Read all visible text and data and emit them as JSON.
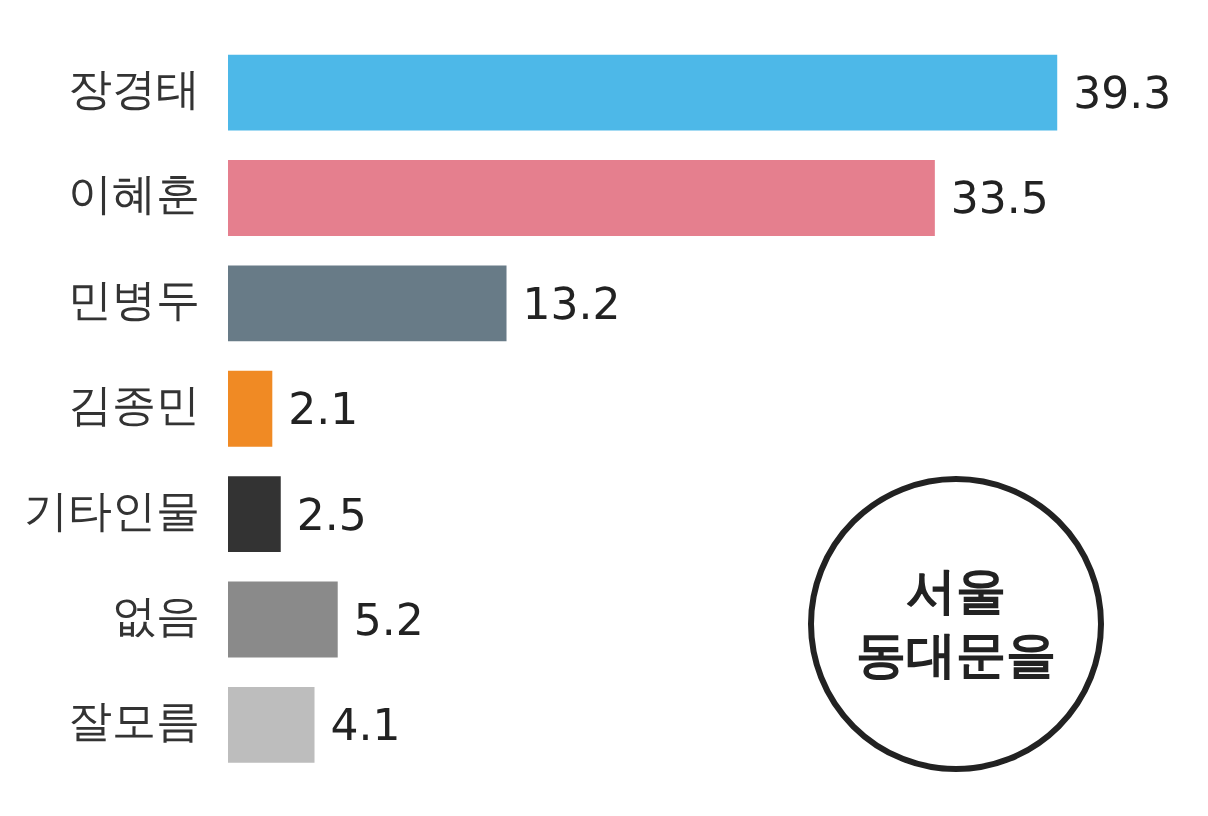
{
  "chart_data": {
    "type": "bar",
    "orientation": "horizontal",
    "categories": [
      "장경태",
      "이혜훈",
      "민병두",
      "김종민",
      "기타인물",
      "없음",
      "잘모름"
    ],
    "values": [
      39.3,
      33.5,
      13.2,
      2.1,
      2.5,
      5.2,
      4.1
    ],
    "colors": [
      "#4db8e8",
      "#e57f8e",
      "#687b87",
      "#f08a24",
      "#333333",
      "#8a8a8a",
      "#bdbdbd"
    ],
    "data_labels": true,
    "legend": false,
    "annotations": [
      "서울 동대문을"
    ]
  }
}
